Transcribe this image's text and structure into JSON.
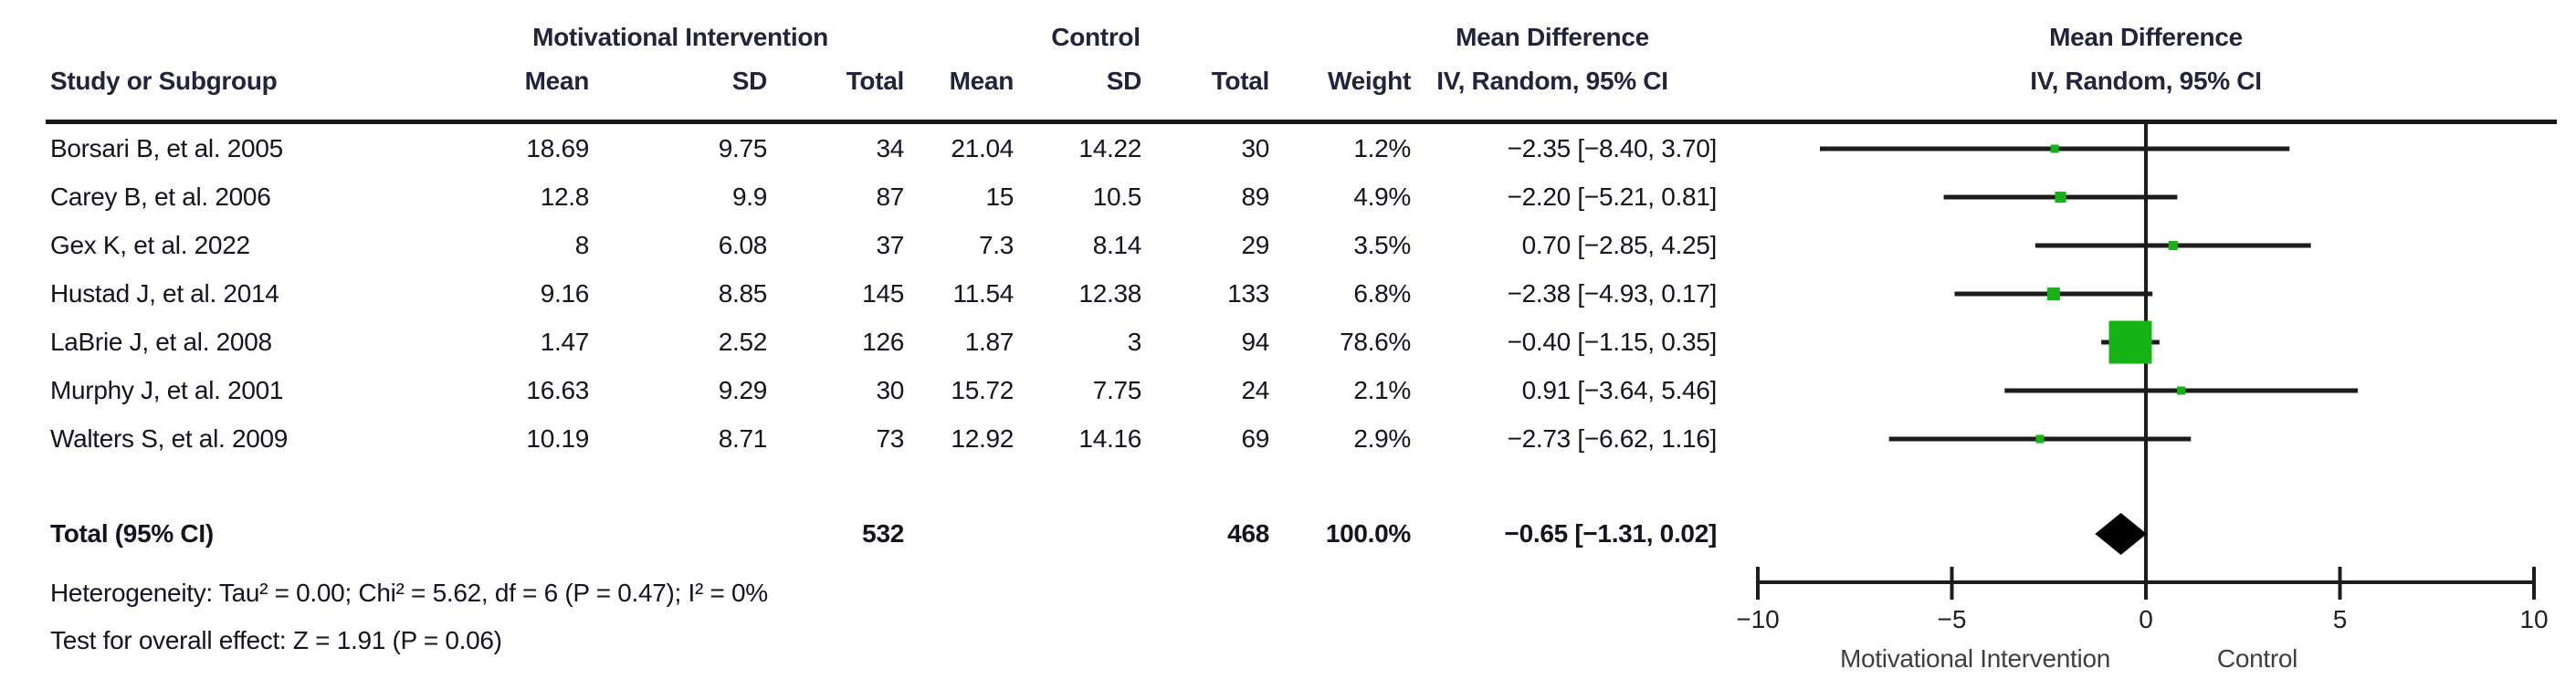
{
  "table": {
    "group1_label": "Motivational Intervention",
    "group2_label": "Control",
    "effect_label": "Mean Difference",
    "effect_sub_label": "IV, Random, 95% CI",
    "columns": {
      "study": "Study or Subgroup",
      "mean": "Mean",
      "sd": "SD",
      "total": "Total",
      "weight": "Weight",
      "ci": "IV, Random, 95% CI"
    },
    "studies": [
      {
        "name": "Borsari B, et al. 2005",
        "mi_mean": "18.69",
        "mi_sd": "9.75",
        "mi_total": "34",
        "c_mean": "21.04",
        "c_sd": "14.22",
        "c_total": "30",
        "weight": "1.2%",
        "ci_text": "−2.35 [−8.40, 3.70]"
      },
      {
        "name": "Carey B, et al. 2006",
        "mi_mean": "12.8",
        "mi_sd": "9.9",
        "mi_total": "87",
        "c_mean": "15",
        "c_sd": "10.5",
        "c_total": "89",
        "weight": "4.9%",
        "ci_text": "−2.20 [−5.21, 0.81]"
      },
      {
        "name": "Gex K, et al. 2022",
        "mi_mean": "8",
        "mi_sd": "6.08",
        "mi_total": "37",
        "c_mean": "7.3",
        "c_sd": "8.14",
        "c_total": "29",
        "weight": "3.5%",
        "ci_text": "0.70 [−2.85, 4.25]"
      },
      {
        "name": "Hustad J, et al. 2014",
        "mi_mean": "9.16",
        "mi_sd": "8.85",
        "mi_total": "145",
        "c_mean": "11.54",
        "c_sd": "12.38",
        "c_total": "133",
        "weight": "6.8%",
        "ci_text": "−2.38 [−4.93, 0.17]"
      },
      {
        "name": "LaBrie J, et al. 2008",
        "mi_mean": "1.47",
        "mi_sd": "2.52",
        "mi_total": "126",
        "c_mean": "1.87",
        "c_sd": "3",
        "c_total": "94",
        "weight": "78.6%",
        "ci_text": "−0.40 [−1.15, 0.35]"
      },
      {
        "name": "Murphy J, et al. 2001",
        "mi_mean": "16.63",
        "mi_sd": "9.29",
        "mi_total": "30",
        "c_mean": "15.72",
        "c_sd": "7.75",
        "c_total": "24",
        "weight": "2.1%",
        "ci_text": "0.91 [−3.64, 5.46]"
      },
      {
        "name": "Walters S, et al. 2009",
        "mi_mean": "10.19",
        "mi_sd": "8.71",
        "mi_total": "73",
        "c_mean": "12.92",
        "c_sd": "14.16",
        "c_total": "69",
        "weight": "2.9%",
        "ci_text": "−2.73 [−6.62, 1.16]"
      }
    ],
    "total": {
      "label": "Total (95% CI)",
      "mi_total": "532",
      "c_total": "468",
      "weight": "100.0%",
      "ci_text": "−0.65 [−1.31, 0.02]"
    },
    "heterogeneity": "Heterogeneity: Tau² = 0.00; Chi² = 5.62, df = 6 (P = 0.47); I² = 0%",
    "overall_effect": "Test for overall effect: Z = 1.91 (P = 0.06)"
  },
  "chart_data": {
    "type": "forest",
    "effect_measure": "Mean Difference",
    "model": "IV, Random, 95% CI",
    "x_axis": {
      "min": -10,
      "max": 10,
      "ticks": [
        -10,
        -5,
        0,
        5,
        10
      ],
      "tick_labels": [
        "−10",
        "−5",
        "0",
        "5",
        "10"
      ],
      "favours_left": "Motivational Intervention",
      "favours_right": "Control"
    },
    "studies": [
      {
        "label": "Borsari B, et al. 2005",
        "estimate": -2.35,
        "ci_low": -8.4,
        "ci_high": 3.7,
        "weight_pct": 1.2
      },
      {
        "label": "Carey B, et al. 2006",
        "estimate": -2.2,
        "ci_low": -5.21,
        "ci_high": 0.81,
        "weight_pct": 4.9
      },
      {
        "label": "Gex K, et al. 2022",
        "estimate": 0.7,
        "ci_low": -2.85,
        "ci_high": 4.25,
        "weight_pct": 3.5
      },
      {
        "label": "Hustad J, et al. 2014",
        "estimate": -2.38,
        "ci_low": -4.93,
        "ci_high": 0.17,
        "weight_pct": 6.8
      },
      {
        "label": "LaBrie J, et al. 2008",
        "estimate": -0.4,
        "ci_low": -1.15,
        "ci_high": 0.35,
        "weight_pct": 78.6
      },
      {
        "label": "Murphy J, et al. 2001",
        "estimate": 0.91,
        "ci_low": -3.64,
        "ci_high": 5.46,
        "weight_pct": 2.1
      },
      {
        "label": "Walters S, et al. 2009",
        "estimate": -2.73,
        "ci_low": -6.62,
        "ci_high": 1.16,
        "weight_pct": 2.9
      }
    ],
    "overall": {
      "label": "Total (95% CI)",
      "estimate": -0.65,
      "ci_low": -1.31,
      "ci_high": 0.02
    },
    "totals": {
      "intervention_n": 532,
      "control_n": 468,
      "weight_pct": 100.0
    },
    "heterogeneity": {
      "tau2": 0.0,
      "chi2": 5.62,
      "df": 6,
      "p": 0.47,
      "i2_pct": 0
    },
    "overall_test": {
      "z": 1.91,
      "p": 0.06
    }
  },
  "colors": {
    "marker_green": "#16b216",
    "diamond_black": "#000000",
    "line_black": "#1c1c1c",
    "axis_label_gray": "#3f3f3f"
  }
}
